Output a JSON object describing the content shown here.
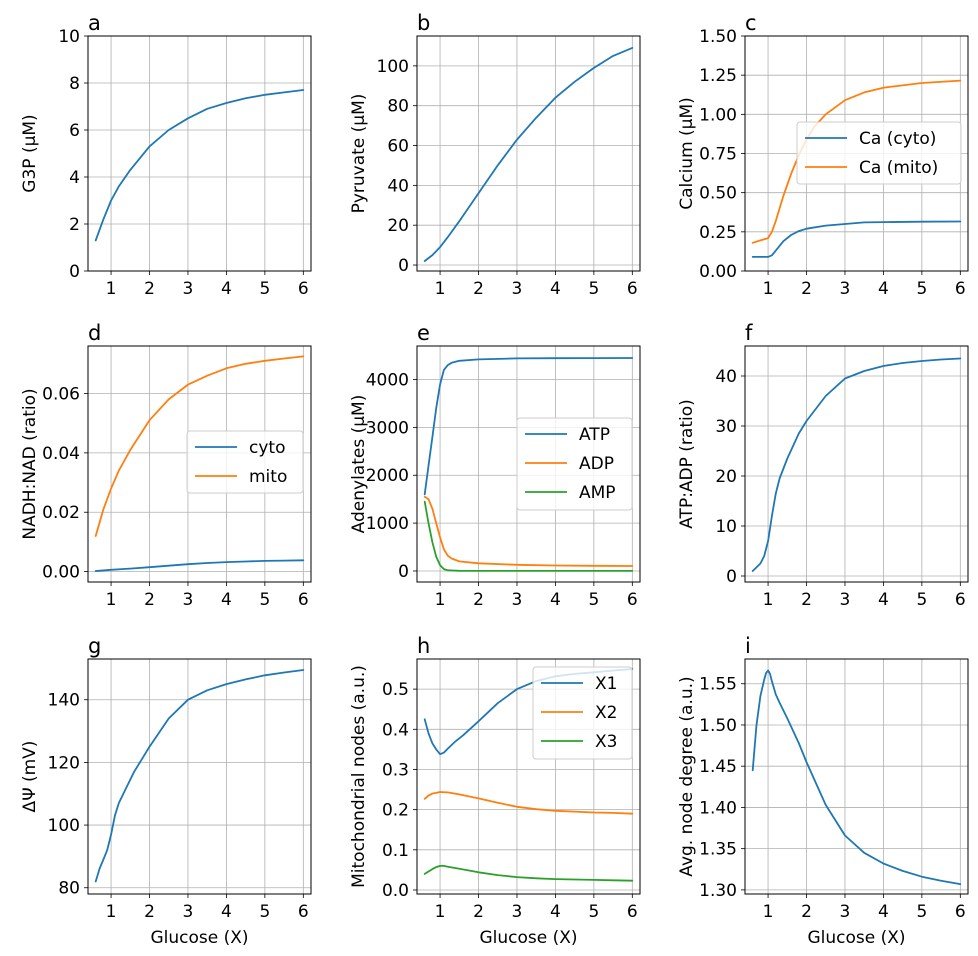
{
  "chart_data": [
    {
      "type": "line",
      "panel_label": "a",
      "xlabel": "",
      "ylabel": "G3P (μM)",
      "xlim": [
        0.4,
        6.2
      ],
      "ylim": [
        0,
        10
      ],
      "xticks": [
        1,
        2,
        3,
        4,
        5,
        6
      ],
      "yticks": [
        0,
        2,
        4,
        6,
        8,
        10
      ],
      "ytick_labels": [
        "0",
        "2",
        "4",
        "6",
        "8",
        "10"
      ],
      "grid": true,
      "legend": null,
      "series": [
        {
          "color": "#1f77b4",
          "x": [
            0.6,
            0.8,
            1.0,
            1.2,
            1.5,
            2.0,
            2.5,
            3.0,
            3.5,
            4.0,
            4.5,
            5.0,
            5.5,
            6.0
          ],
          "y": [
            1.3,
            2.2,
            3.0,
            3.6,
            4.3,
            5.3,
            6.0,
            6.5,
            6.9,
            7.15,
            7.35,
            7.5,
            7.6,
            7.7
          ]
        }
      ]
    },
    {
      "type": "line",
      "panel_label": "b",
      "xlabel": "",
      "ylabel": "Pyruvate (μM)",
      "xlim": [
        0.4,
        6.2
      ],
      "ylim": [
        -3,
        115
      ],
      "xticks": [
        1,
        2,
        3,
        4,
        5,
        6
      ],
      "yticks": [
        0,
        20,
        40,
        60,
        80,
        100
      ],
      "ytick_labels": [
        "0",
        "20",
        "40",
        "60",
        "80",
        "100"
      ],
      "grid": true,
      "legend": null,
      "series": [
        {
          "color": "#1f77b4",
          "x": [
            0.6,
            0.8,
            1.0,
            1.2,
            1.5,
            2.0,
            2.5,
            3.0,
            3.5,
            4.0,
            4.5,
            5.0,
            5.5,
            6.0
          ],
          "y": [
            2,
            5,
            9,
            14,
            22,
            36,
            50,
            63,
            74,
            84,
            92,
            99,
            105,
            109
          ]
        }
      ]
    },
    {
      "type": "line",
      "panel_label": "c",
      "xlabel": "",
      "ylabel": "Calcium (μM)",
      "xlim": [
        0.4,
        6.2
      ],
      "ylim": [
        0,
        1.5
      ],
      "xticks": [
        1,
        2,
        3,
        4,
        5,
        6
      ],
      "yticks": [
        0,
        0.25,
        0.5,
        0.75,
        1.0,
        1.25,
        1.5
      ],
      "ytick_labels": [
        "0.00",
        "0.25",
        "0.50",
        "0.75",
        "1.00",
        "1.25",
        "1.50"
      ],
      "grid": true,
      "legend": "center-right",
      "series": [
        {
          "name": "Ca (cyto)",
          "color": "#1f77b4",
          "x": [
            0.6,
            0.8,
            1.0,
            1.1,
            1.2,
            1.4,
            1.6,
            1.8,
            2.0,
            2.5,
            3.0,
            3.5,
            4.0,
            5.0,
            6.0
          ],
          "y": [
            0.09,
            0.09,
            0.09,
            0.1,
            0.13,
            0.19,
            0.23,
            0.255,
            0.27,
            0.29,
            0.3,
            0.31,
            0.312,
            0.315,
            0.316
          ]
        },
        {
          "name": "Ca (mito)",
          "color": "#ff7f0e",
          "x": [
            0.6,
            0.8,
            1.0,
            1.1,
            1.2,
            1.4,
            1.6,
            1.8,
            2.0,
            2.2,
            2.5,
            3.0,
            3.5,
            4.0,
            5.0,
            6.0
          ],
          "y": [
            0.18,
            0.195,
            0.21,
            0.25,
            0.32,
            0.48,
            0.62,
            0.74,
            0.84,
            0.92,
            1.0,
            1.09,
            1.14,
            1.17,
            1.2,
            1.215
          ]
        }
      ]
    },
    {
      "type": "line",
      "panel_label": "d",
      "xlabel": "",
      "ylabel": "NADH:NAD (ratio)",
      "xlim": [
        0.4,
        6.2
      ],
      "ylim": [
        -0.0035,
        0.076
      ],
      "xticks": [
        1,
        2,
        3,
        4,
        5,
        6
      ],
      "yticks": [
        0,
        0.02,
        0.04,
        0.06
      ],
      "ytick_labels": [
        "0.00",
        "0.02",
        "0.04",
        "0.06"
      ],
      "grid": true,
      "legend": "center-right",
      "series": [
        {
          "name": "cyto",
          "color": "#1f77b4",
          "x": [
            0.6,
            1.0,
            1.5,
            2.0,
            2.5,
            3.0,
            3.5,
            4.0,
            4.5,
            5.0,
            5.5,
            6.0
          ],
          "y": [
            0.0002,
            0.0006,
            0.001,
            0.0015,
            0.002,
            0.0025,
            0.0029,
            0.0032,
            0.0034,
            0.0036,
            0.0037,
            0.0038
          ]
        },
        {
          "name": "mito",
          "color": "#ff7f0e",
          "x": [
            0.6,
            0.8,
            1.0,
            1.2,
            1.5,
            2.0,
            2.5,
            3.0,
            3.5,
            4.0,
            4.5,
            5.0,
            5.5,
            6.0
          ],
          "y": [
            0.012,
            0.021,
            0.028,
            0.034,
            0.041,
            0.051,
            0.058,
            0.063,
            0.066,
            0.0685,
            0.07,
            0.071,
            0.0718,
            0.0725
          ]
        }
      ]
    },
    {
      "type": "line",
      "panel_label": "e",
      "xlabel": "",
      "ylabel": "Adenylates (μM)",
      "xlim": [
        0.4,
        6.2
      ],
      "ylim": [
        -230,
        4700
      ],
      "xticks": [
        1,
        2,
        3,
        4,
        5,
        6
      ],
      "yticks": [
        0,
        1000,
        2000,
        3000,
        4000
      ],
      "ytick_labels": [
        "0",
        "1000",
        "2000",
        "3000",
        "4000"
      ],
      "grid": true,
      "legend": "center-right",
      "series": [
        {
          "name": "ATP",
          "color": "#1f77b4",
          "x": [
            0.6,
            0.7,
            0.8,
            0.9,
            1.0,
            1.1,
            1.2,
            1.3,
            1.5,
            2.0,
            3.0,
            4.0,
            5.0,
            6.0
          ],
          "y": [
            1600,
            2200,
            2800,
            3400,
            3900,
            4200,
            4300,
            4350,
            4390,
            4420,
            4440,
            4445,
            4448,
            4450
          ]
        },
        {
          "name": "ADP",
          "color": "#ff7f0e",
          "x": [
            0.6,
            0.7,
            0.8,
            0.9,
            1.0,
            1.1,
            1.2,
            1.3,
            1.5,
            2.0,
            3.0,
            4.0,
            5.0,
            6.0
          ],
          "y": [
            1550,
            1500,
            1300,
            1000,
            700,
            450,
            320,
            260,
            200,
            160,
            130,
            115,
            108,
            105
          ]
        },
        {
          "name": "AMP",
          "color": "#2ca02c",
          "x": [
            0.6,
            0.7,
            0.8,
            0.9,
            1.0,
            1.1,
            1.2,
            1.5,
            2.0,
            3.0,
            6.0
          ],
          "y": [
            1450,
            1000,
            600,
            300,
            120,
            40,
            15,
            5,
            2,
            1,
            1
          ]
        }
      ]
    },
    {
      "type": "line",
      "panel_label": "f",
      "xlabel": "",
      "ylabel": "ATP:ADP (ratio)",
      "xlim": [
        0.4,
        6.2
      ],
      "ylim": [
        -1.2,
        46
      ],
      "xticks": [
        1,
        2,
        3,
        4,
        5,
        6
      ],
      "yticks": [
        0,
        10,
        20,
        30,
        40
      ],
      "ytick_labels": [
        "0",
        "10",
        "20",
        "30",
        "40"
      ],
      "grid": true,
      "legend": null,
      "series": [
        {
          "color": "#1f77b4",
          "x": [
            0.6,
            0.8,
            0.9,
            1.0,
            1.1,
            1.2,
            1.3,
            1.5,
            1.8,
            2.0,
            2.5,
            3.0,
            3.5,
            4.0,
            4.5,
            5.0,
            5.5,
            6.0
          ],
          "y": [
            1,
            2.5,
            4,
            7,
            12,
            16.5,
            19.5,
            23.5,
            28.5,
            31,
            36,
            39.5,
            41,
            42,
            42.6,
            43,
            43.3,
            43.5
          ]
        }
      ]
    },
    {
      "type": "line",
      "panel_label": "g",
      "xlabel": "Glucose (X)",
      "ylabel": "ΔΨ (mV)",
      "xlim": [
        0.4,
        6.2
      ],
      "ylim": [
        78,
        153
      ],
      "xticks": [
        1,
        2,
        3,
        4,
        5,
        6
      ],
      "yticks": [
        80,
        100,
        120,
        140
      ],
      "ytick_labels": [
        "80",
        "100",
        "120",
        "140"
      ],
      "grid": true,
      "legend": null,
      "series": [
        {
          "color": "#1f77b4",
          "x": [
            0.6,
            0.7,
            0.8,
            0.9,
            1.0,
            1.1,
            1.2,
            1.4,
            1.6,
            1.8,
            2.0,
            2.5,
            3.0,
            3.5,
            4.0,
            4.5,
            5.0,
            5.5,
            6.0
          ],
          "y": [
            82,
            86,
            89,
            92,
            97,
            103,
            107,
            112,
            117,
            121,
            125,
            134,
            140,
            143,
            145,
            146.5,
            147.8,
            148.7,
            149.5
          ]
        }
      ]
    },
    {
      "type": "line",
      "panel_label": "h",
      "xlabel": "Glucose (X)",
      "ylabel": "Mitochondrial nodes (a.u.)",
      "xlim": [
        0.4,
        6.2
      ],
      "ylim": [
        -0.01,
        0.575
      ],
      "xticks": [
        1,
        2,
        3,
        4,
        5,
        6
      ],
      "yticks": [
        0,
        0.1,
        0.2,
        0.3,
        0.4,
        0.5
      ],
      "ytick_labels": [
        "0.0",
        "0.1",
        "0.2",
        "0.3",
        "0.4",
        "0.5"
      ],
      "grid": true,
      "legend": "top-right",
      "series": [
        {
          "name": "X1",
          "color": "#1f77b4",
          "x": [
            0.6,
            0.7,
            0.8,
            0.9,
            1.0,
            1.1,
            1.2,
            1.4,
            1.6,
            2.0,
            2.5,
            3.0,
            3.5,
            4.0,
            4.5,
            5.0,
            5.5,
            6.0
          ],
          "y": [
            0.425,
            0.39,
            0.365,
            0.35,
            0.338,
            0.342,
            0.352,
            0.37,
            0.385,
            0.42,
            0.465,
            0.5,
            0.52,
            0.532,
            0.538,
            0.542,
            0.546,
            0.55
          ]
        },
        {
          "name": "X2",
          "color": "#ff7f0e",
          "x": [
            0.6,
            0.7,
            0.8,
            1.0,
            1.2,
            1.5,
            2.0,
            2.5,
            3.0,
            3.5,
            4.0,
            4.5,
            5.0,
            5.5,
            6.0
          ],
          "y": [
            0.227,
            0.235,
            0.24,
            0.244,
            0.243,
            0.238,
            0.228,
            0.217,
            0.207,
            0.201,
            0.197,
            0.195,
            0.193,
            0.192,
            0.19
          ]
        },
        {
          "name": "X3",
          "color": "#2ca02c",
          "x": [
            0.6,
            0.7,
            0.8,
            0.9,
            1.0,
            1.1,
            1.2,
            1.5,
            2.0,
            2.5,
            3.0,
            3.5,
            4.0,
            4.5,
            5.0,
            5.5,
            6.0
          ],
          "y": [
            0.04,
            0.046,
            0.052,
            0.057,
            0.06,
            0.06,
            0.058,
            0.053,
            0.044,
            0.037,
            0.032,
            0.029,
            0.027,
            0.026,
            0.025,
            0.024,
            0.023
          ]
        }
      ]
    },
    {
      "type": "line",
      "panel_label": "i",
      "xlabel": "Glucose (X)",
      "ylabel": "Avg. node degree (a.u.)",
      "xlim": [
        0.4,
        6.2
      ],
      "ylim": [
        1.295,
        1.58
      ],
      "xticks": [
        1,
        2,
        3,
        4,
        5,
        6
      ],
      "yticks": [
        1.3,
        1.35,
        1.4,
        1.45,
        1.5,
        1.55
      ],
      "ytick_labels": [
        "1.30",
        "1.35",
        "1.40",
        "1.45",
        "1.50",
        "1.55"
      ],
      "grid": true,
      "legend": null,
      "series": [
        {
          "color": "#1f77b4",
          "x": [
            0.6,
            0.7,
            0.8,
            0.9,
            0.95,
            1.0,
            1.05,
            1.1,
            1.2,
            1.3,
            1.5,
            1.8,
            2.0,
            2.5,
            3.0,
            3.5,
            4.0,
            4.5,
            5.0,
            5.5,
            6.0
          ],
          "y": [
            1.445,
            1.5,
            1.535,
            1.555,
            1.563,
            1.566,
            1.562,
            1.553,
            1.537,
            1.527,
            1.508,
            1.478,
            1.455,
            1.403,
            1.366,
            1.345,
            1.332,
            1.323,
            1.316,
            1.311,
            1.307
          ]
        }
      ]
    }
  ]
}
